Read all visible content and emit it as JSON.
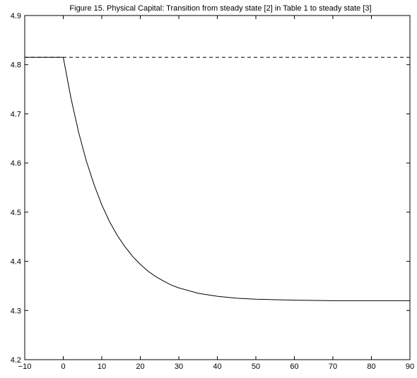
{
  "chart_data": {
    "type": "line",
    "title": "Figure 15.  Physical Capital:  Transition from steady state [2] in Table 1 to steady state [3]",
    "xlabel": "",
    "ylabel": "",
    "xlim": [
      -10,
      90
    ],
    "ylim": [
      4.2,
      4.9
    ],
    "x_ticks": [
      -10,
      0,
      10,
      20,
      30,
      40,
      50,
      60,
      70,
      80,
      90
    ],
    "x_tick_labels": [
      "−10",
      "0",
      "10",
      "20",
      "30",
      "40",
      "50",
      "60",
      "70",
      "80",
      "90"
    ],
    "y_ticks": [
      4.2,
      4.3,
      4.4,
      4.5,
      4.6,
      4.7,
      4.8,
      4.9
    ],
    "y_tick_labels": [
      "4.2",
      "4.3",
      "4.4",
      "4.5",
      "4.6",
      "4.7",
      "4.8",
      "4.9"
    ],
    "grid": false,
    "series": [
      {
        "style": "solid",
        "x": [
          -10,
          0,
          2,
          4,
          6,
          8,
          10,
          12,
          14,
          16,
          18,
          20,
          22,
          24,
          26,
          28,
          30,
          35,
          40,
          45,
          50,
          55,
          60,
          70,
          80,
          90
        ],
        "y": [
          4.815,
          4.815,
          4.732,
          4.662,
          4.604,
          4.556,
          4.515,
          4.481,
          4.453,
          4.43,
          4.41,
          4.394,
          4.38,
          4.369,
          4.36,
          4.352,
          4.346,
          4.335,
          4.329,
          4.325,
          4.323,
          4.322,
          4.321,
          4.32,
          4.32,
          4.32
        ]
      },
      {
        "style": "dashed",
        "x": [
          -10,
          90
        ],
        "y": [
          4.815,
          4.815
        ]
      }
    ]
  }
}
